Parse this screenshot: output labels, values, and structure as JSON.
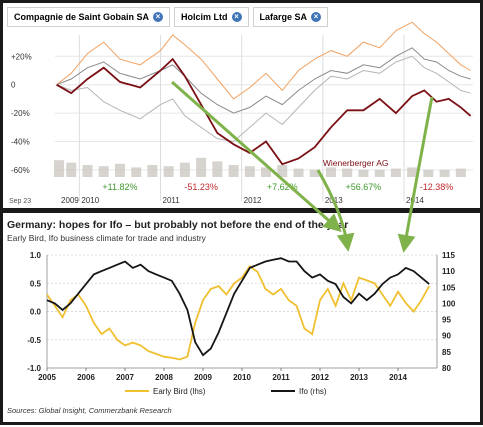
{
  "colors": {
    "saint_gobain": "#f2a261",
    "holcim": "#8a8a8a",
    "lafarge": "#b5b5b5",
    "wienerberger": "#7a0f14",
    "volume": "#c9c4bd",
    "positive": "#3f9a2c",
    "negative": "#c0282d",
    "early_bird": "#f0c030",
    "ifo": "#151515",
    "arrow": "#7fb24a",
    "tab_close": "#3f74b8"
  },
  "top_chart": {
    "tabs": [
      {
        "label": "Compagnie de Saint Gobain SA",
        "close_icon": "close-icon"
      },
      {
        "label": "Holcim Ltd",
        "close_icon": "close-icon"
      },
      {
        "label": "Lafarge SA",
        "close_icon": "close-icon"
      }
    ],
    "start_label": "Sep 23",
    "series_label": "Wienerberger AG"
  },
  "bottom_chart": {
    "title": "Germany: hopes for Ifo – but probably not before the end of the year",
    "subtitle": "Early Bird, Ifo business climate for trade and industry",
    "source": "Sources: Global Insight, Commerzbank Research"
  },
  "chart_data": [
    {
      "type": "line",
      "title": "",
      "ylim": [
        -65,
        35
      ],
      "y_ticks": [
        "+20%",
        "0",
        "-20%",
        "-40%",
        "-60%"
      ],
      "y_tick_values": [
        20,
        0,
        -20,
        -40,
        -60
      ],
      "xlim": [
        2009.7,
        2014.85
      ],
      "x_ticks": [
        {
          "label": "2009",
          "x": 2009.75
        },
        {
          "label": "2010",
          "x": 2010.0
        },
        {
          "label": "2011",
          "x": 2011.0
        },
        {
          "label": "2012",
          "x": 2012.0
        },
        {
          "label": "2013",
          "x": 2013.0
        },
        {
          "label": "2014",
          "x": 2014.0
        }
      ],
      "annual_changes": [
        {
          "label": "+11.82%",
          "x": 2010.5,
          "sign": "positive"
        },
        {
          "label": "-51.23%",
          "x": 2011.5,
          "sign": "negative"
        },
        {
          "label": "+7.62%",
          "x": 2012.5,
          "sign": "positive"
        },
        {
          "label": "+56.67%",
          "x": 2013.5,
          "sign": "positive"
        },
        {
          "label": "-12.38%",
          "x": 2014.4,
          "sign": "negative"
        }
      ],
      "series": [
        {
          "name": "Compagnie de Saint Gobain SA",
          "color_key": "saint_gobain",
          "x": [
            2009.72,
            2009.9,
            2010.1,
            2010.3,
            2010.5,
            2010.75,
            2011.0,
            2011.15,
            2011.3,
            2011.5,
            2011.7,
            2011.9,
            2012.1,
            2012.3,
            2012.5,
            2012.7,
            2012.9,
            2013.1,
            2013.3,
            2013.5,
            2013.7,
            2013.9,
            2014.1,
            2014.25,
            2014.4,
            2014.55,
            2014.7,
            2014.82
          ],
          "values": [
            0,
            8,
            22,
            30,
            18,
            14,
            24,
            35,
            28,
            18,
            4,
            -10,
            -2,
            8,
            -4,
            10,
            18,
            24,
            20,
            30,
            26,
            38,
            44,
            36,
            30,
            22,
            14,
            10
          ]
        },
        {
          "name": "Holcim Ltd",
          "color_key": "holcim",
          "x": [
            2009.72,
            2009.9,
            2010.1,
            2010.3,
            2010.5,
            2010.75,
            2011.0,
            2011.15,
            2011.3,
            2011.5,
            2011.7,
            2011.9,
            2012.1,
            2012.3,
            2012.5,
            2012.7,
            2012.9,
            2013.1,
            2013.3,
            2013.5,
            2013.7,
            2013.9,
            2014.1,
            2014.25,
            2014.4,
            2014.55,
            2014.7,
            2014.82
          ],
          "values": [
            0,
            4,
            12,
            16,
            8,
            4,
            10,
            14,
            6,
            -6,
            -14,
            -20,
            -16,
            -8,
            -14,
            -4,
            4,
            10,
            8,
            14,
            12,
            20,
            26,
            18,
            16,
            10,
            6,
            4
          ]
        },
        {
          "name": "Lafarge SA",
          "color_key": "lafarge",
          "x": [
            2009.72,
            2009.9,
            2010.1,
            2010.3,
            2010.5,
            2010.75,
            2011.0,
            2011.15,
            2011.3,
            2011.5,
            2011.7,
            2011.9,
            2012.1,
            2012.3,
            2012.5,
            2012.7,
            2012.9,
            2013.1,
            2013.3,
            2013.5,
            2013.7,
            2013.9,
            2014.1,
            2014.25,
            2014.4,
            2014.55,
            2014.7,
            2014.82
          ],
          "values": [
            0,
            -4,
            -2,
            -12,
            -18,
            -24,
            -14,
            -10,
            -22,
            -30,
            -38,
            -40,
            -30,
            -20,
            -28,
            -16,
            -4,
            6,
            4,
            10,
            8,
            16,
            20,
            12,
            8,
            2,
            -4,
            -6
          ]
        },
        {
          "name": "Wienerberger AG",
          "color_key": "wienerberger",
          "x": [
            2009.72,
            2009.9,
            2010.1,
            2010.3,
            2010.5,
            2010.75,
            2011.0,
            2011.15,
            2011.3,
            2011.5,
            2011.7,
            2011.9,
            2012.1,
            2012.3,
            2012.5,
            2012.7,
            2012.9,
            2013.1,
            2013.3,
            2013.5,
            2013.7,
            2013.9,
            2014.1,
            2014.25,
            2014.4,
            2014.55,
            2014.7,
            2014.82
          ],
          "values": [
            0,
            -6,
            4,
            12,
            2,
            -2,
            10,
            18,
            6,
            -14,
            -34,
            -42,
            -48,
            -40,
            -56,
            -52,
            -44,
            -30,
            -18,
            -18,
            -10,
            -20,
            -8,
            -4,
            -12,
            -10,
            -16,
            -22
          ]
        }
      ],
      "volume": {
        "color_key": "volume",
        "x": [
          2009.75,
          2009.9,
          2010.1,
          2010.3,
          2010.5,
          2010.7,
          2010.9,
          2011.1,
          2011.3,
          2011.5,
          2011.7,
          2011.9,
          2012.1,
          2012.3,
          2012.5,
          2012.7,
          2012.9,
          2013.1,
          2013.3,
          2013.5,
          2013.7,
          2013.9,
          2014.1,
          2014.3,
          2014.5,
          2014.7
        ],
        "values": [
          0.7,
          0.6,
          0.5,
          0.45,
          0.55,
          0.4,
          0.5,
          0.45,
          0.6,
          0.8,
          0.65,
          0.5,
          0.45,
          0.4,
          0.5,
          0.35,
          0.3,
          0.4,
          0.35,
          0.3,
          0.3,
          0.35,
          0.4,
          0.3,
          0.3,
          0.35
        ]
      }
    },
    {
      "type": "line",
      "title": "Germany: hopes for Ifo – but probably not before the end of the year",
      "xlim": [
        2005,
        2015
      ],
      "x_ticks": [
        "2005",
        "2006",
        "2007",
        "2008",
        "2009",
        "2010",
        "2011",
        "2012",
        "2013",
        "2014"
      ],
      "x_tick_values": [
        2005,
        2006,
        2007,
        2008,
        2009,
        2010,
        2011,
        2012,
        2013,
        2014
      ],
      "y_left": {
        "ticks": [
          "1.0",
          "0.5",
          "0.0",
          "-0.5",
          "-1.0"
        ],
        "values": [
          1.0,
          0.5,
          0.0,
          -0.5,
          -1.0
        ],
        "lim": [
          -1.0,
          1.0
        ]
      },
      "y_right": {
        "ticks": [
          "115",
          "110",
          "105",
          "100",
          "95",
          "90",
          "85",
          "80"
        ],
        "values": [
          115,
          110,
          105,
          100,
          95,
          90,
          85,
          80
        ],
        "lim": [
          80,
          115
        ]
      },
      "grid": true,
      "legend": {
        "position": "bottom",
        "entries": [
          "Early Bird (lhs)",
          "Ifo (rhs)"
        ]
      },
      "series": [
        {
          "name": "Early Bird (lhs)",
          "axis": "left",
          "color_key": "early_bird",
          "x": [
            2005.0,
            2005.2,
            2005.4,
            2005.6,
            2005.8,
            2006.0,
            2006.2,
            2006.4,
            2006.6,
            2006.8,
            2007.0,
            2007.2,
            2007.4,
            2007.6,
            2007.8,
            2008.0,
            2008.2,
            2008.4,
            2008.6,
            2008.8,
            2009.0,
            2009.2,
            2009.4,
            2009.6,
            2009.8,
            2010.0,
            2010.2,
            2010.4,
            2010.6,
            2010.8,
            2011.0,
            2011.2,
            2011.4,
            2011.6,
            2011.8,
            2012.0,
            2012.2,
            2012.4,
            2012.6,
            2012.8,
            2013.0,
            2013.2,
            2013.4,
            2013.6,
            2013.8,
            2014.0,
            2014.2,
            2014.4,
            2014.6,
            2014.8
          ],
          "values": [
            0.3,
            0.1,
            -0.1,
            0.2,
            0.3,
            0.1,
            -0.2,
            -0.4,
            -0.3,
            -0.5,
            -0.6,
            -0.55,
            -0.6,
            -0.7,
            -0.75,
            -0.8,
            -0.82,
            -0.85,
            -0.8,
            -0.2,
            0.2,
            0.4,
            0.45,
            0.3,
            0.5,
            0.6,
            0.8,
            0.7,
            0.4,
            0.3,
            0.4,
            0.2,
            0.1,
            -0.3,
            -0.4,
            0.2,
            0.4,
            0.1,
            0.5,
            0.2,
            0.6,
            0.55,
            0.5,
            0.3,
            0.1,
            0.35,
            0.15,
            0.0,
            0.2,
            0.45
          ]
        },
        {
          "name": "Ifo (rhs)",
          "axis": "right",
          "color_key": "ifo",
          "x": [
            2005.0,
            2005.2,
            2005.4,
            2005.6,
            2005.8,
            2006.0,
            2006.2,
            2006.4,
            2006.6,
            2006.8,
            2007.0,
            2007.2,
            2007.4,
            2007.6,
            2007.8,
            2008.0,
            2008.2,
            2008.4,
            2008.6,
            2008.8,
            2009.0,
            2009.2,
            2009.4,
            2009.6,
            2009.8,
            2010.0,
            2010.2,
            2010.4,
            2010.6,
            2010.8,
            2011.0,
            2011.2,
            2011.4,
            2011.6,
            2011.8,
            2012.0,
            2012.2,
            2012.4,
            2012.6,
            2012.8,
            2013.0,
            2013.2,
            2013.4,
            2013.6,
            2013.8,
            2014.0,
            2014.2,
            2014.4,
            2014.6,
            2014.8
          ],
          "values": [
            101,
            100,
            98,
            100,
            103,
            106,
            109,
            110,
            111,
            112,
            113,
            111,
            112,
            110,
            109,
            108,
            107,
            103,
            98,
            88,
            84,
            86,
            91,
            97,
            103,
            107,
            111,
            112,
            113,
            113.5,
            114,
            113,
            113,
            110,
            108,
            109,
            107,
            106,
            102,
            100,
            103,
            101,
            103,
            106,
            108,
            109,
            111,
            110,
            108,
            106
          ]
        }
      ]
    }
  ]
}
